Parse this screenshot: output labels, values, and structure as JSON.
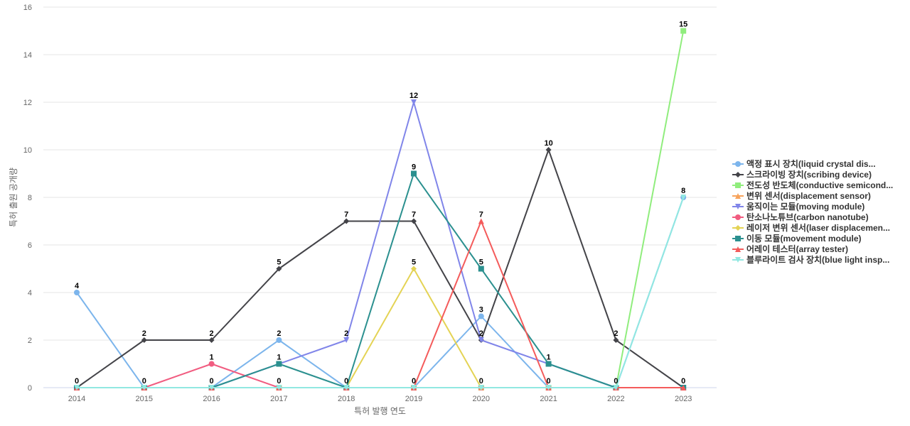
{
  "chart_data": {
    "type": "line",
    "title": "",
    "xlabel": "특허 발행 연도",
    "ylabel": "특허 출원 공개량",
    "x": [
      "2014",
      "2015",
      "2016",
      "2017",
      "2018",
      "2019",
      "2020",
      "2021",
      "2022",
      "2023"
    ],
    "ylim": [
      0,
      16
    ],
    "yticks": [
      0,
      2,
      4,
      6,
      8,
      10,
      12,
      14,
      16
    ],
    "grid": true,
    "legend_position": "right",
    "series": [
      {
        "name": "액정 표시 장치(liquid crystal dis...",
        "color": "#7cb5ec",
        "marker": "circle",
        "values": [
          4,
          0,
          0,
          2,
          0,
          0,
          3,
          0,
          0,
          8
        ]
      },
      {
        "name": "스크라이빙 장치(scribing device)",
        "color": "#434348",
        "marker": "diamond",
        "values": [
          0,
          2,
          2,
          5,
          7,
          7,
          2,
          10,
          2,
          0
        ]
      },
      {
        "name": "전도성 반도체(conductive semicond...",
        "color": "#90ed7d",
        "marker": "square",
        "values": [
          0,
          0,
          0,
          0,
          0,
          0,
          0,
          0,
          0,
          15
        ]
      },
      {
        "name": "변위 센서(displacement sensor)",
        "color": "#f7a35c",
        "marker": "triangle",
        "values": [
          0,
          0,
          0,
          0,
          0,
          0,
          0,
          0,
          0,
          0
        ]
      },
      {
        "name": "움직이는 모듈(moving module)",
        "color": "#8085e9",
        "marker": "triangle-down",
        "values": [
          0,
          0,
          0,
          1,
          2,
          12,
          2,
          1,
          0,
          0
        ]
      },
      {
        "name": "탄소나노튜브(carbon nanotube)",
        "color": "#f15c80",
        "marker": "circle",
        "values": [
          0,
          0,
          1,
          0,
          0,
          0,
          0,
          0,
          0,
          0
        ]
      },
      {
        "name": "레이저 변위 센서(laser displacemen...",
        "color": "#e4d354",
        "marker": "diamond",
        "values": [
          0,
          0,
          0,
          0,
          0,
          5,
          0,
          0,
          0,
          0
        ]
      },
      {
        "name": "이동 모듈(movement module)",
        "color": "#2b908f",
        "marker": "square",
        "values": [
          0,
          0,
          0,
          1,
          0,
          9,
          5,
          1,
          0,
          0
        ]
      },
      {
        "name": "어레이 테스터(array tester)",
        "color": "#f45b5b",
        "marker": "triangle",
        "values": [
          0,
          0,
          0,
          0,
          0,
          0,
          7,
          0,
          0,
          0
        ]
      },
      {
        "name": "블루라이트 검사 장치(blue light insp...",
        "color": "#91e8e1",
        "marker": "triangle-down",
        "values": [
          0,
          0,
          0,
          0,
          0,
          0,
          0,
          0,
          0,
          8
        ]
      }
    ],
    "data_labels": [
      {
        "x": "2014",
        "value": 4
      },
      {
        "x": "2014",
        "value": 0
      },
      {
        "x": "2015",
        "value": 2
      },
      {
        "x": "2015",
        "value": 0
      },
      {
        "x": "2016",
        "value": 2
      },
      {
        "x": "2016",
        "value": 1
      },
      {
        "x": "2016",
        "value": 0
      },
      {
        "x": "2017",
        "value": 5
      },
      {
        "x": "2017",
        "value": 2
      },
      {
        "x": "2017",
        "value": 1
      },
      {
        "x": "2017",
        "value": 0
      },
      {
        "x": "2018",
        "value": 7
      },
      {
        "x": "2018",
        "value": 2
      },
      {
        "x": "2018",
        "value": 0
      },
      {
        "x": "2019",
        "value": 12
      },
      {
        "x": "2019",
        "value": 9
      },
      {
        "x": "2019",
        "value": 7
      },
      {
        "x": "2019",
        "value": 5
      },
      {
        "x": "2019",
        "value": 0
      },
      {
        "x": "2020",
        "value": 7
      },
      {
        "x": "2020",
        "value": 5
      },
      {
        "x": "2020",
        "value": 3
      },
      {
        "x": "2020",
        "value": 2
      },
      {
        "x": "2020",
        "value": 0
      },
      {
        "x": "2021",
        "value": 10
      },
      {
        "x": "2021",
        "value": 1
      },
      {
        "x": "2021",
        "value": 0
      },
      {
        "x": "2022",
        "value": 2
      },
      {
        "x": "2022",
        "value": 0
      },
      {
        "x": "2023",
        "value": 15
      },
      {
        "x": "2023",
        "value": 8
      },
      {
        "x": "2023",
        "value": 0
      }
    ]
  }
}
